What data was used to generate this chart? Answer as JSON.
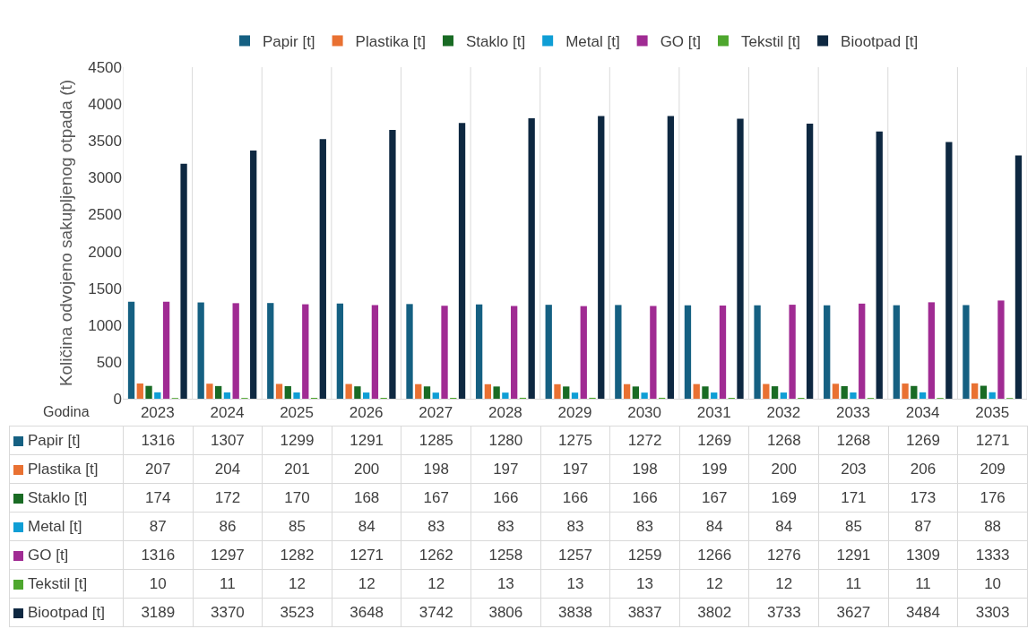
{
  "chart_data": {
    "type": "bar",
    "ylabel": "Količina odvojeno sakupljenog otpada (t)",
    "xlabel": "Godina",
    "categories": [
      "2023",
      "2024",
      "2025",
      "2026",
      "2027",
      "2028",
      "2029",
      "2030",
      "2031",
      "2032",
      "2033",
      "2034",
      "2035"
    ],
    "series": [
      {
        "name": "Papir [t]",
        "color": "#156082",
        "values": [
          1316,
          1307,
          1299,
          1291,
          1285,
          1280,
          1275,
          1272,
          1269,
          1268,
          1268,
          1269,
          1271
        ]
      },
      {
        "name": "Plastika [t]",
        "color": "#e97132",
        "values": [
          207,
          204,
          201,
          200,
          198,
          197,
          197,
          198,
          199,
          200,
          203,
          206,
          209
        ]
      },
      {
        "name": "Staklo [t]",
        "color": "#196b24",
        "values": [
          174,
          172,
          170,
          168,
          167,
          166,
          166,
          166,
          167,
          169,
          171,
          173,
          176
        ]
      },
      {
        "name": "Metal [t]",
        "color": "#0f9ed5",
        "values": [
          87,
          86,
          85,
          84,
          83,
          83,
          83,
          83,
          84,
          84,
          85,
          87,
          88
        ]
      },
      {
        "name": "GO [t]",
        "color": "#a02b93",
        "values": [
          1316,
          1297,
          1282,
          1271,
          1262,
          1258,
          1257,
          1259,
          1266,
          1276,
          1291,
          1309,
          1333
        ]
      },
      {
        "name": "Tekstil [t]",
        "color": "#4ea72e",
        "values": [
          10,
          11,
          12,
          12,
          12,
          13,
          13,
          13,
          12,
          12,
          11,
          11,
          10
        ]
      },
      {
        "name": "Biootpad [t]",
        "color": "#0e2841",
        "values": [
          3189,
          3370,
          3523,
          3648,
          3742,
          3806,
          3838,
          3837,
          3802,
          3733,
          3627,
          3484,
          3303
        ]
      }
    ],
    "ylim": [
      0,
      4500
    ],
    "yticks": [
      0,
      500,
      1000,
      1500,
      2000,
      2500,
      3000,
      3500,
      4000,
      4500
    ],
    "grid": "x",
    "legend": "top",
    "data_labels": true
  }
}
